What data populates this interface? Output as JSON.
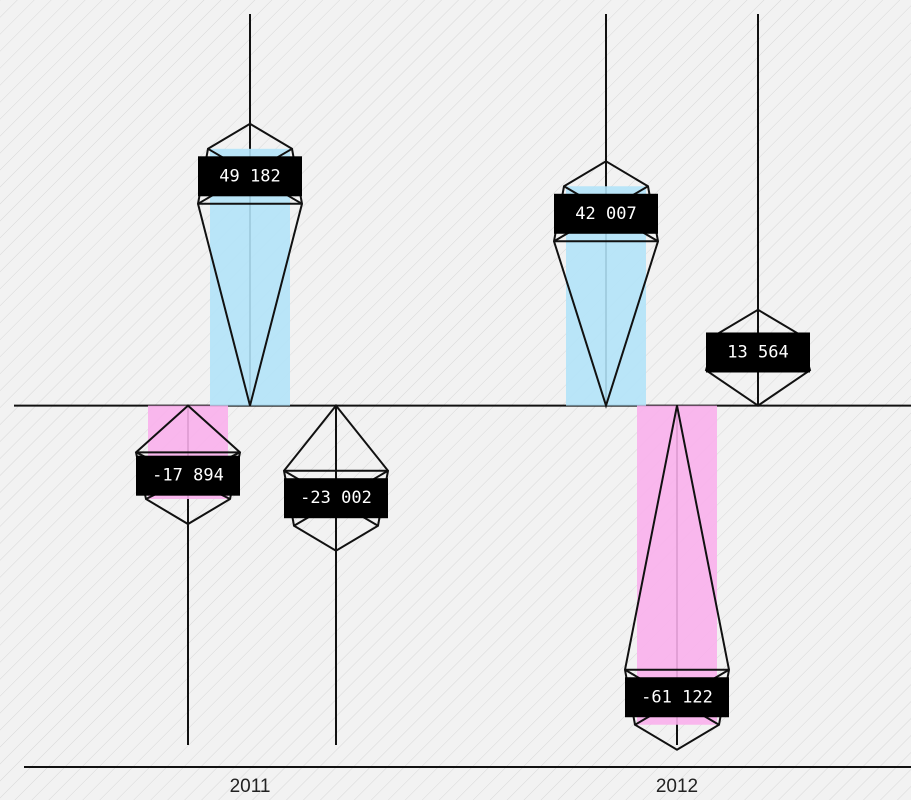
{
  "chart_data": {
    "type": "bar",
    "categories": [
      "2011",
      "2012"
    ],
    "series": [
      {
        "color": "#b3e3f8",
        "values": [
          49182,
          42007
        ],
        "value_labels": [
          "49 182",
          "42 007"
        ]
      },
      {
        "color": "#f9b0ec",
        "values": [
          -17894,
          -61122
        ],
        "value_labels": [
          "-17 894",
          "-61 122"
        ]
      },
      {
        "color": "none",
        "values": [
          -23002,
          13564
        ],
        "value_labels": [
          "-23 002",
          "13 564"
        ]
      }
    ],
    "ylim": [
      -65000,
      75000
    ]
  }
}
